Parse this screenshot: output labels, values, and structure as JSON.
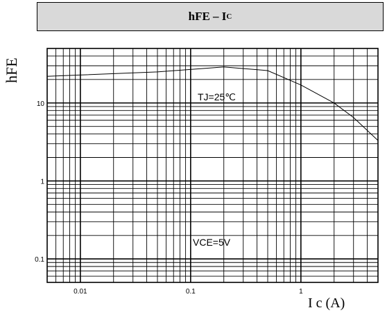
{
  "title": {
    "main": "hFE – I",
    "sub": "C"
  },
  "chart_data": {
    "type": "line",
    "title": "hFE – IC",
    "xlabel": "I c (A)",
    "ylabel": "hFE",
    "xscale": "log",
    "yscale": "log",
    "xlim": [
      0.005,
      5
    ],
    "ylim": [
      0.05,
      50
    ],
    "grid": true,
    "x_ticks": [
      0.01,
      0.1,
      1
    ],
    "x_tick_labels": [
      "0.01",
      "0.1",
      "1"
    ],
    "y_ticks": [
      0.1,
      1,
      10
    ],
    "y_tick_labels": [
      "0.1",
      "1",
      "10"
    ],
    "series": [
      {
        "x": [
          0.005,
          0.05,
          0.2,
          0.5,
          1,
          2,
          3,
          5
        ],
        "y": [
          22,
          25,
          29,
          26,
          17,
          10,
          6.5,
          3.3
        ]
      }
    ],
    "annotations": [
      "TJ=25℃",
      "VCE=5V"
    ]
  }
}
